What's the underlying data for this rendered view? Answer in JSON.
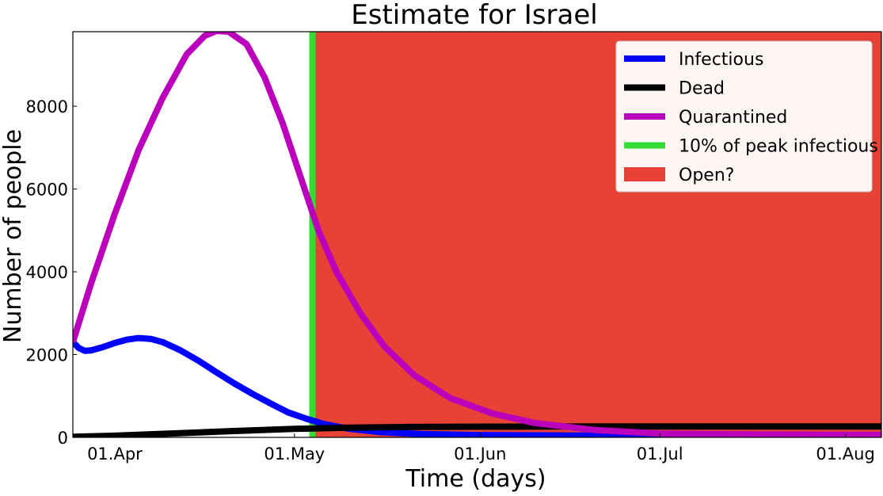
{
  "chart_data": {
    "type": "line",
    "title": "Estimate for Israel",
    "xlabel": "Time (days)",
    "ylabel": "Number of people",
    "x_range": [
      "2020-03-25",
      "2020-08-07"
    ],
    "ylim": [
      0,
      9800
    ],
    "yticks": [
      0,
      2000,
      4000,
      6000,
      8000
    ],
    "xticks": [
      {
        "date": "2020-04-01",
        "label": "01.Apr"
      },
      {
        "date": "2020-05-01",
        "label": "01.May"
      },
      {
        "date": "2020-06-01",
        "label": "01.Jun"
      },
      {
        "date": "2020-07-01",
        "label": "01.Jul"
      },
      {
        "date": "2020-08-01",
        "label": "01.Aug"
      }
    ],
    "grid": false,
    "legend_position": "top-right",
    "open_region": {
      "label": "Open?",
      "start": "2020-05-04",
      "end": "2020-08-07",
      "color": "#e84237"
    },
    "marker_line": {
      "label": "10% of peak infectious",
      "date": "2020-05-04",
      "color": "#33dd33"
    },
    "series": [
      {
        "name": "Infectious",
        "color": "#0000ff",
        "points": [
          [
            "2020-03-25",
            2300
          ],
          [
            "2020-03-26",
            2160
          ],
          [
            "2020-03-27",
            2090
          ],
          [
            "2020-03-28",
            2100
          ],
          [
            "2020-03-30",
            2180
          ],
          [
            "2020-04-01",
            2280
          ],
          [
            "2020-04-03",
            2360
          ],
          [
            "2020-04-05",
            2400
          ],
          [
            "2020-04-07",
            2380
          ],
          [
            "2020-04-09",
            2300
          ],
          [
            "2020-04-12",
            2100
          ],
          [
            "2020-04-15",
            1850
          ],
          [
            "2020-04-18",
            1570
          ],
          [
            "2020-04-21",
            1300
          ],
          [
            "2020-04-24",
            1050
          ],
          [
            "2020-04-27",
            820
          ],
          [
            "2020-04-30",
            600
          ],
          [
            "2020-05-03",
            450
          ],
          [
            "2020-05-06",
            320
          ],
          [
            "2020-05-10",
            210
          ],
          [
            "2020-05-15",
            130
          ],
          [
            "2020-05-22",
            80
          ],
          [
            "2020-06-01",
            55
          ],
          [
            "2020-06-15",
            45
          ],
          [
            "2020-07-01",
            40
          ],
          [
            "2020-07-20",
            38
          ],
          [
            "2020-08-07",
            36
          ]
        ]
      },
      {
        "name": "Dead",
        "color": "#000000",
        "points": [
          [
            "2020-03-25",
            15
          ],
          [
            "2020-04-01",
            40
          ],
          [
            "2020-04-10",
            90
          ],
          [
            "2020-04-20",
            150
          ],
          [
            "2020-05-01",
            205
          ],
          [
            "2020-05-10",
            235
          ],
          [
            "2020-05-20",
            250
          ],
          [
            "2020-06-01",
            258
          ],
          [
            "2020-06-15",
            262
          ],
          [
            "2020-07-01",
            264
          ],
          [
            "2020-08-07",
            265
          ]
        ]
      },
      {
        "name": "Quarantined",
        "color": "#bb00bb",
        "points": [
          [
            "2020-03-25",
            2300
          ],
          [
            "2020-03-28",
            3700
          ],
          [
            "2020-04-01",
            5400
          ],
          [
            "2020-04-05",
            6950
          ],
          [
            "2020-04-09",
            8200
          ],
          [
            "2020-04-13",
            9250
          ],
          [
            "2020-04-16",
            9700
          ],
          [
            "2020-04-18",
            9820
          ],
          [
            "2020-04-20",
            9800
          ],
          [
            "2020-04-23",
            9500
          ],
          [
            "2020-04-26",
            8700
          ],
          [
            "2020-04-29",
            7600
          ],
          [
            "2020-05-02",
            6300
          ],
          [
            "2020-05-05",
            5000
          ],
          [
            "2020-05-08",
            4000
          ],
          [
            "2020-05-12",
            3000
          ],
          [
            "2020-05-16",
            2200
          ],
          [
            "2020-05-21",
            1500
          ],
          [
            "2020-05-27",
            950
          ],
          [
            "2020-06-03",
            580
          ],
          [
            "2020-06-10",
            350
          ],
          [
            "2020-06-20",
            180
          ],
          [
            "2020-07-01",
            90
          ],
          [
            "2020-07-15",
            70
          ],
          [
            "2020-08-07",
            60
          ]
        ]
      }
    ],
    "legend": [
      "Infectious",
      "Dead",
      "Quarantined",
      "10% of peak infectious",
      "Open?"
    ]
  }
}
